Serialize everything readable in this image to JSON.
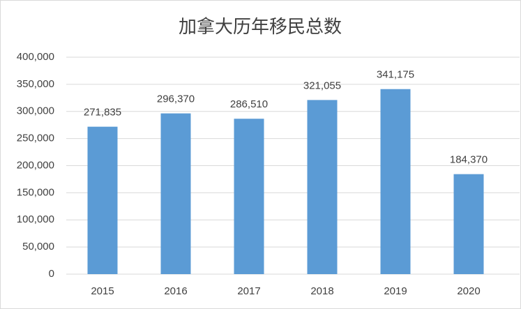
{
  "chart_data": {
    "type": "bar",
    "title": "加拿大历年移民总数",
    "categories": [
      "2015",
      "2016",
      "2017",
      "2018",
      "2019",
      "2020"
    ],
    "values": [
      271835,
      296370,
      286510,
      321055,
      341175,
      184370
    ],
    "value_labels": [
      "271,835",
      "296,370",
      "286,510",
      "321,055",
      "341,175",
      "184,370"
    ],
    "color": "#5b9bd5",
    "ylim": [
      0,
      400000
    ],
    "yticks": [
      0,
      {
        "value": 50000,
        "label": "50,000"
      },
      {
        "value": 100000,
        "label": "100,000"
      },
      {
        "value": 150000,
        "label": "150,000"
      },
      {
        "value": 200000,
        "label": "200,000"
      },
      {
        "value": 250000,
        "label": "250,000"
      },
      {
        "value": 300000,
        "label": "300,000"
      },
      {
        "value": 350000,
        "label": "350,000"
      },
      {
        "value": 400000,
        "label": "400,000"
      }
    ],
    "grid": true
  }
}
